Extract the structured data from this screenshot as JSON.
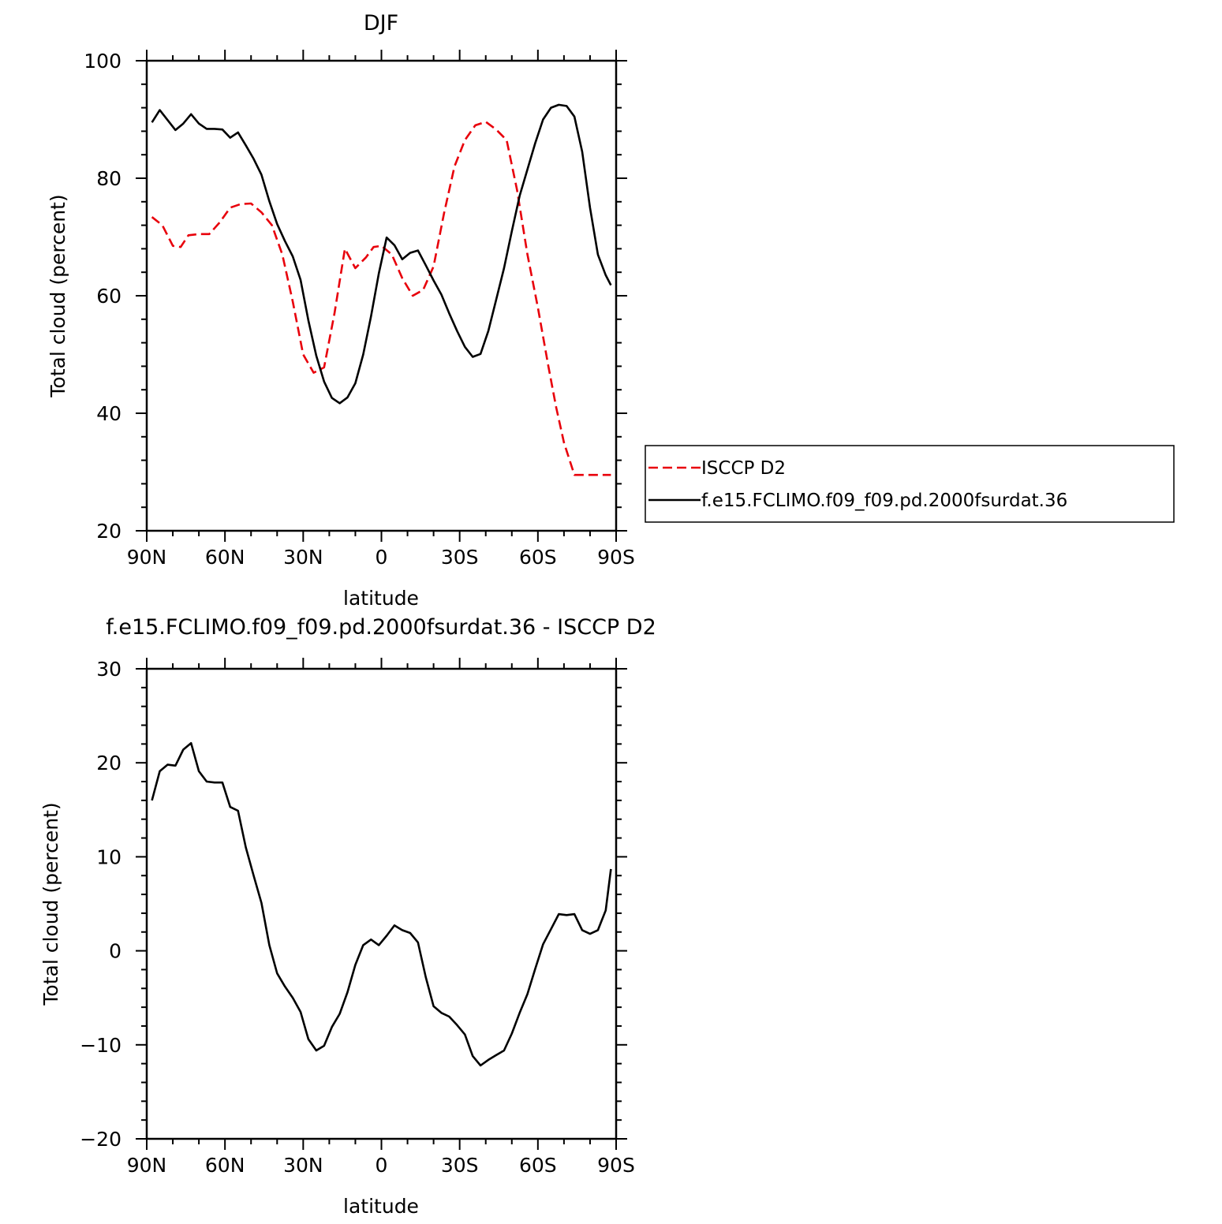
{
  "chart_data": [
    {
      "type": "line",
      "title": "DJF",
      "xlabel": "latitude",
      "ylabel": "Total cloud (percent)",
      "xlim": [
        90,
        -90
      ],
      "ylim": [
        20,
        100
      ],
      "x_ticks": [
        90,
        60,
        30,
        0,
        -30,
        -60,
        -90
      ],
      "x_tick_labels": [
        "90N",
        "60N",
        "30N",
        "0",
        "30S",
        "60S",
        "90S"
      ],
      "y_ticks": [
        20,
        40,
        60,
        80,
        100
      ],
      "y_tick_labels": [
        "20",
        "40",
        "60",
        "80",
        "100"
      ],
      "legend_position": "right",
      "series": [
        {
          "name": "ISCCP D2",
          "color": "#e8000b",
          "dash": "dashed",
          "x": [
            88,
            84,
            80,
            77,
            74,
            70,
            66,
            62,
            58,
            54,
            50,
            46,
            42,
            38,
            34,
            30,
            26,
            22,
            18,
            14,
            10,
            6,
            3,
            0,
            -4,
            -8,
            -12,
            -16,
            -20,
            -24,
            -28,
            -32,
            -36,
            -40,
            -44,
            -48,
            -52,
            -56,
            -60,
            -64,
            -67,
            -70,
            -74,
            -78,
            -82,
            -86,
            -88
          ],
          "values": [
            73.4,
            72,
            68.5,
            68.3,
            70.3,
            70.5,
            70.5,
            72.5,
            75,
            75.6,
            75.7,
            74.2,
            72,
            67,
            59,
            50,
            46.9,
            47.8,
            57,
            68,
            64.7,
            66.5,
            68.3,
            68.5,
            67,
            63,
            60,
            61,
            65,
            74,
            82,
            86.5,
            89,
            89.6,
            88.3,
            86.5,
            78,
            67,
            58,
            48,
            41,
            35,
            29.5,
            29.5,
            29.5,
            29.5,
            29.5
          ]
        },
        {
          "name": "f.e15.FCLIMO.f09_f09.pd.2000fsurdat.36",
          "color": "#000000",
          "dash": "solid",
          "x": [
            88,
            85,
            82,
            79,
            76,
            73,
            70,
            67,
            64,
            61,
            58,
            55,
            52,
            49,
            46,
            43,
            40,
            37,
            34,
            31,
            28,
            25,
            22,
            19,
            16,
            13,
            10,
            7,
            4,
            1,
            -2,
            -5,
            -8,
            -11,
            -14,
            -17,
            -20,
            -23,
            -26,
            -29,
            -32,
            -35,
            -38,
            -41,
            -44,
            -47,
            -50,
            -53,
            -56,
            -59,
            -62,
            -65,
            -68,
            -71,
            -74,
            -77,
            -80,
            -83,
            -86,
            -88
          ],
          "values": [
            89.5,
            91.6,
            89.9,
            88.2,
            89.3,
            90.9,
            89.3,
            88.4,
            88.4,
            88.3,
            86.9,
            87.8,
            85.6,
            83.3,
            80.6,
            76.1,
            72.2,
            69.3,
            66.7,
            62.7,
            55.8,
            49.8,
            45.4,
            42.6,
            41.7,
            42.7,
            45.1,
            50,
            56.5,
            63.8,
            69.9,
            68.6,
            66.2,
            67.3,
            67.7,
            65.2,
            62.6,
            60.2,
            57,
            54,
            51.3,
            49.6,
            50.1,
            54,
            59.3,
            64.7,
            71,
            77,
            81.5,
            86,
            90,
            92,
            92.5,
            92.3,
            90.5,
            84.5,
            75,
            67,
            63.5,
            61.8
          ]
        }
      ]
    },
    {
      "type": "line",
      "title": "f.e15.FCLIMO.f09_f09.pd.2000fsurdat.36 - ISCCP D2",
      "xlabel": "latitude",
      "ylabel": "Total cloud (percent)",
      "xlim": [
        90,
        -90
      ],
      "ylim": [
        -20,
        30
      ],
      "x_ticks": [
        90,
        60,
        30,
        0,
        -30,
        -60,
        -90
      ],
      "x_tick_labels": [
        "90N",
        "60N",
        "30N",
        "0",
        "30S",
        "60S",
        "90S"
      ],
      "y_ticks": [
        -20,
        -10,
        0,
        10,
        20,
        30
      ],
      "y_tick_labels": [
        "−20",
        "−10",
        "0",
        "10",
        "20",
        "30"
      ],
      "series": [
        {
          "color": "#000000",
          "dash": "solid",
          "x": [
            88,
            85,
            82,
            79,
            76,
            73,
            70,
            67,
            64,
            61,
            58,
            55,
            52,
            49,
            46,
            43,
            40,
            37,
            34,
            31,
            28,
            25,
            22,
            19,
            16,
            13,
            10,
            7,
            4,
            1,
            -2,
            -5,
            -8,
            -11,
            -14,
            -17,
            -20,
            -23,
            -26,
            -29,
            -32,
            -35,
            -38,
            -41,
            -44,
            -47,
            -50,
            -53,
            -56,
            -59,
            -62,
            -65,
            -68,
            -71,
            -74,
            -77,
            -80,
            -83,
            -86,
            -88
          ],
          "values": [
            16,
            19.1,
            19.8,
            19.7,
            21.4,
            22.1,
            19.1,
            18,
            17.9,
            17.9,
            15.3,
            14.9,
            11,
            8,
            5.1,
            0.6,
            -2.4,
            -3.8,
            -5,
            -6.5,
            -9.4,
            -10.6,
            -10.1,
            -8.1,
            -6.7,
            -4.4,
            -1.5,
            0.6,
            1.2,
            0.6,
            1.6,
            2.7,
            2.2,
            1.9,
            0.9,
            -2.8,
            -5.9,
            -6.6,
            -7,
            -7.9,
            -8.9,
            -11.2,
            -12.2,
            -11.6,
            -11.1,
            -10.6,
            -8.8,
            -6.6,
            -4.6,
            -1.9,
            0.7,
            2.3,
            3.9,
            3.8,
            3.9,
            2.2,
            1.8,
            2.2,
            4.3,
            8.7
          ]
        }
      ]
    }
  ]
}
